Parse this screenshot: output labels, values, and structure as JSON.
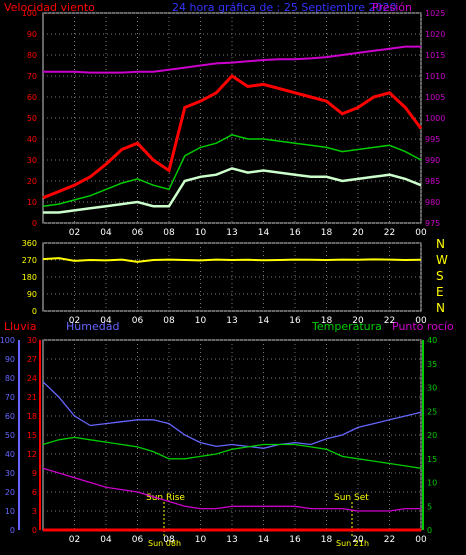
{
  "header": {
    "wind_label": "Velocidad viento",
    "title": "24 hora gráfica de : 25 Septiembre 2020",
    "pressure_label": "Presión"
  },
  "colors": {
    "wind": "#ff0000",
    "gust_avg": "#00cc00",
    "wind_min": "#ccffcc",
    "pressure": "#cc00cc",
    "direction": "#ffff00",
    "rain": "#ff0000",
    "humidity": "#6666ff",
    "temperature": "#00cc00",
    "dewpoint": "#cc00cc",
    "sun_marker": "#ffff00"
  },
  "direction_letters": [
    "N",
    "W",
    "S",
    "E",
    "N"
  ],
  "bottom_header": {
    "rain_label": "Lluvia",
    "humidity_label": "Humedad",
    "temperature_label": "Temperatura",
    "dewpoint_label": "Punto rocío"
  },
  "sun": {
    "rise_label": "Sun Rise",
    "set_label": "Sun Set",
    "rise_time_label": "Sun 08h",
    "set_time_label": "Sun 21h"
  },
  "chart_data": [
    {
      "type": "line",
      "x_ticks": [
        "02",
        "04",
        "06",
        "08",
        "10",
        "13",
        "14",
        "16",
        "18",
        "20",
        "22",
        "00"
      ],
      "y_left_ticks": [
        0,
        10,
        20,
        30,
        40,
        50,
        60,
        70,
        80,
        90,
        100
      ],
      "y_right_ticks": [
        975,
        980,
        985,
        990,
        995,
        1000,
        1005,
        1010,
        1015,
        1020,
        1025
      ],
      "xlim": [
        0,
        24
      ],
      "ylim": [
        0,
        100
      ],
      "ylim_right": [
        975,
        1025
      ],
      "grid": true,
      "series": [
        {
          "name": "Velocidad viento",
          "axis": "left",
          "x": [
            0,
            1,
            2,
            3,
            4,
            5,
            6,
            7,
            8,
            9,
            10,
            11,
            12,
            13,
            14,
            15,
            16,
            17,
            18,
            19,
            20,
            21,
            22,
            23,
            24
          ],
          "values": [
            12,
            15,
            18,
            22,
            28,
            35,
            38,
            30,
            25,
            55,
            58,
            62,
            70,
            65,
            66,
            64,
            62,
            60,
            58,
            52,
            55,
            60,
            62,
            55,
            45
          ]
        },
        {
          "name": "",
          "axis": "left",
          "x": [
            0,
            1,
            2,
            3,
            4,
            5,
            6,
            7,
            8,
            9,
            10,
            11,
            12,
            13,
            14,
            15,
            16,
            17,
            18,
            19,
            20,
            21,
            22,
            23,
            24
          ],
          "values": [
            8,
            9,
            11,
            13,
            16,
            19,
            21,
            18,
            16,
            32,
            36,
            38,
            42,
            40,
            40,
            39,
            38,
            37,
            36,
            34,
            35,
            36,
            37,
            34,
            30
          ]
        },
        {
          "name": "",
          "axis": "left",
          "x": [
            0,
            1,
            2,
            3,
            4,
            5,
            6,
            7,
            8,
            9,
            10,
            11,
            12,
            13,
            14,
            15,
            16,
            17,
            18,
            19,
            20,
            21,
            22,
            23,
            24
          ],
          "values": [
            5,
            5,
            6,
            7,
            8,
            9,
            10,
            8,
            8,
            20,
            22,
            23,
            26,
            24,
            25,
            24,
            23,
            22,
            22,
            20,
            21,
            22,
            23,
            21,
            18
          ]
        },
        {
          "name": "Presión",
          "axis": "right",
          "x": [
            0,
            1,
            2,
            3,
            4,
            5,
            6,
            7,
            8,
            9,
            10,
            11,
            12,
            13,
            14,
            15,
            16,
            17,
            18,
            19,
            20,
            21,
            22,
            23,
            24
          ],
          "values": [
            1011,
            1011,
            1011,
            1010.8,
            1010.8,
            1010.8,
            1011,
            1011,
            1011.5,
            1012,
            1012.5,
            1013,
            1013.2,
            1013.5,
            1013.8,
            1014,
            1014,
            1014.2,
            1014.5,
            1015,
            1015.5,
            1016,
            1016.5,
            1017,
            1017
          ]
        }
      ]
    },
    {
      "type": "line",
      "x_ticks": [
        "02",
        "04",
        "06",
        "08",
        "10",
        "13",
        "14",
        "16",
        "18",
        "20",
        "22",
        "00"
      ],
      "y_left_ticks": [
        0,
        90,
        180,
        270,
        360
      ],
      "xlim": [
        0,
        24
      ],
      "ylim": [
        0,
        360
      ],
      "grid": true,
      "series": [
        {
          "name": "",
          "axis": "left",
          "x": [
            0,
            1,
            2,
            3,
            4,
            5,
            6,
            7,
            8,
            9,
            10,
            11,
            12,
            13,
            14,
            15,
            16,
            17,
            18,
            19,
            20,
            21,
            22,
            23,
            24
          ],
          "values": [
            275,
            280,
            265,
            270,
            268,
            272,
            260,
            270,
            272,
            270,
            268,
            272,
            270,
            271,
            269,
            270,
            272,
            271,
            270,
            272,
            271,
            273,
            272,
            270,
            271
          ]
        }
      ]
    },
    {
      "type": "line",
      "x_ticks": [
        "02",
        "04",
        "06",
        "08",
        "10",
        "13",
        "14",
        "16",
        "18",
        "20",
        "22",
        "00"
      ],
      "y_left_ticks_humidity": [
        0,
        10,
        20,
        30,
        40,
        50,
        60,
        70,
        80,
        90,
        100
      ],
      "y_left_ticks_rain": [
        0,
        3,
        6,
        9,
        12,
        15,
        18,
        21,
        24,
        27,
        30
      ],
      "y_right_ticks": [
        0,
        5,
        10,
        15,
        20,
        25,
        30,
        35,
        40
      ],
      "xlim": [
        0,
        24
      ],
      "grid": true,
      "series": [
        {
          "name": "Humedad",
          "axis": "humidity",
          "x": [
            0,
            1,
            2,
            3,
            4,
            5,
            6,
            7,
            8,
            9,
            10,
            11,
            12,
            13,
            14,
            15,
            16,
            17,
            18,
            19,
            20,
            21,
            22,
            23,
            24
          ],
          "values": [
            78,
            70,
            60,
            55,
            56,
            57,
            58,
            58,
            56,
            50,
            46,
            44,
            45,
            44,
            43,
            45,
            46,
            45,
            48,
            50,
            54,
            56,
            58,
            60,
            62
          ]
        },
        {
          "name": "Temperatura",
          "axis": "temperature",
          "x": [
            0,
            1,
            2,
            3,
            4,
            5,
            6,
            7,
            8,
            9,
            10,
            11,
            12,
            13,
            14,
            15,
            16,
            17,
            18,
            19,
            20,
            21,
            22,
            23,
            24
          ],
          "values": [
            18,
            19,
            19.5,
            19,
            18.5,
            18,
            17.5,
            16.5,
            15,
            15,
            15.5,
            16,
            17,
            17.5,
            18,
            18,
            18,
            17.5,
            17,
            15.5,
            15,
            14.5,
            14,
            13.5,
            13
          ]
        },
        {
          "name": "Punto rocío",
          "axis": "temperature",
          "x": [
            0,
            1,
            2,
            3,
            4,
            5,
            6,
            7,
            8,
            9,
            10,
            11,
            12,
            13,
            14,
            15,
            16,
            17,
            18,
            19,
            20,
            21,
            22,
            23,
            24
          ],
          "values": [
            13,
            12,
            11,
            10,
            9,
            8.5,
            8,
            7,
            6,
            5,
            4.5,
            4.5,
            5,
            5,
            5,
            5,
            5,
            4.5,
            4.5,
            4.5,
            4,
            4,
            4,
            4.5,
            4.5
          ]
        },
        {
          "name": "Lluvia",
          "axis": "rain",
          "x": [
            0,
            24
          ],
          "values": [
            0,
            0
          ]
        }
      ]
    }
  ]
}
